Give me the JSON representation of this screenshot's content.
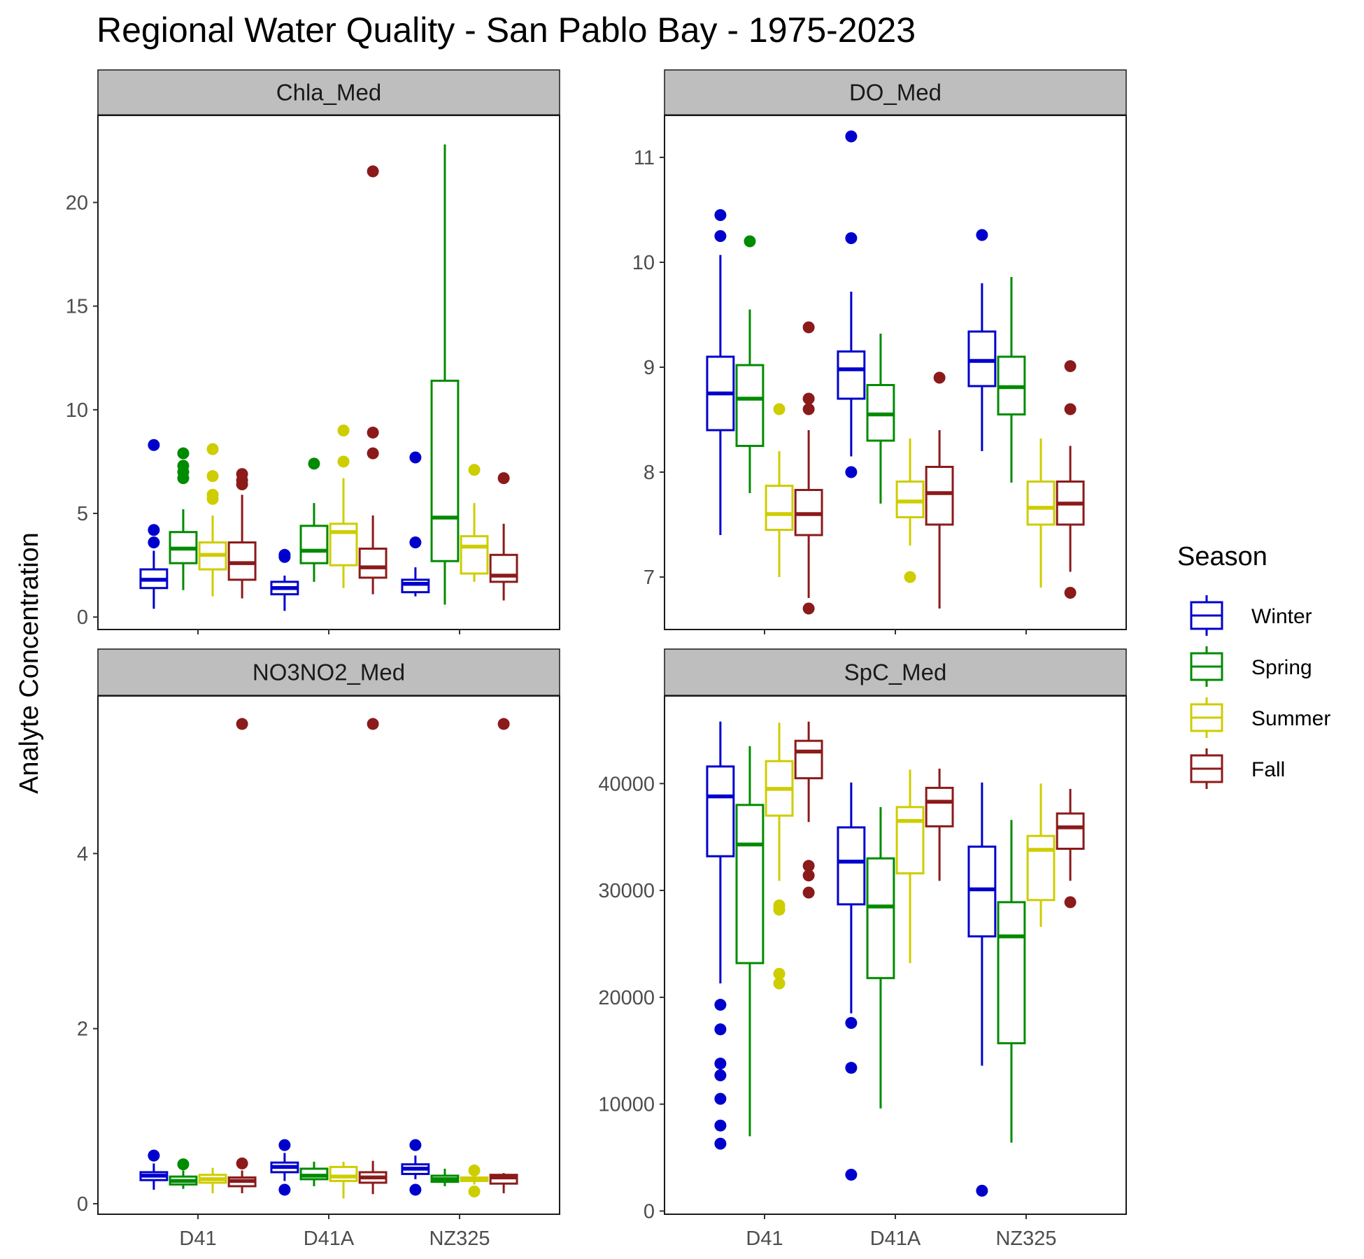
{
  "chart_data": {
    "type": "boxplot",
    "title": "Regional Water Quality - San Pablo Bay - 1975-2023",
    "ylabel": "Analyte Concentration",
    "xlabel": "",
    "stations": [
      "D41",
      "D41A",
      "NZ325"
    ],
    "legend": {
      "title": "Season",
      "position": "right",
      "entries": [
        {
          "name": "Winter",
          "color": "#0000cd"
        },
        {
          "name": "Spring",
          "color": "#008b00"
        },
        {
          "name": "Summer",
          "color": "#cdcd00"
        },
        {
          "name": "Fall",
          "color": "#8b1a1a"
        }
      ]
    },
    "panels": [
      {
        "name": "Chla_Med",
        "ylim": [
          -0.6,
          24.2
        ],
        "yticks": [
          0,
          5,
          10,
          15,
          20
        ],
        "tick_labels": [
          "0",
          "5",
          "10",
          "15",
          "20"
        ],
        "boxes": [
          {
            "station": "D41",
            "season": "Winter",
            "lower": 0.4,
            "q1": 1.4,
            "median": 1.8,
            "q3": 2.3,
            "upper": 3.2,
            "outliers": [
              3.6,
              4.2,
              8.3
            ]
          },
          {
            "station": "D41",
            "season": "Spring",
            "lower": 1.3,
            "q1": 2.6,
            "median": 3.3,
            "q3": 4.1,
            "upper": 5.2,
            "outliers": [
              6.7,
              7.0,
              7.3,
              7.9
            ]
          },
          {
            "station": "D41",
            "season": "Summer",
            "lower": 1.0,
            "q1": 2.3,
            "median": 3.0,
            "q3": 3.6,
            "upper": 4.9,
            "outliers": [
              5.7,
              5.9,
              6.8,
              8.1
            ]
          },
          {
            "station": "D41",
            "season": "Fall",
            "lower": 0.9,
            "q1": 1.8,
            "median": 2.6,
            "q3": 3.6,
            "upper": 5.9,
            "outliers": [
              6.4,
              6.6,
              6.9
            ]
          },
          {
            "station": "D41A",
            "season": "Winter",
            "lower": 0.3,
            "q1": 1.1,
            "median": 1.4,
            "q3": 1.7,
            "upper": 2.0,
            "outliers": [
              2.9,
              3.0
            ]
          },
          {
            "station": "D41A",
            "season": "Spring",
            "lower": 1.7,
            "q1": 2.6,
            "median": 3.2,
            "q3": 4.4,
            "upper": 5.5,
            "outliers": [
              7.4
            ]
          },
          {
            "station": "D41A",
            "season": "Summer",
            "lower": 1.4,
            "q1": 2.5,
            "median": 4.1,
            "q3": 4.5,
            "upper": 6.7,
            "outliers": [
              7.5,
              9.0
            ]
          },
          {
            "station": "D41A",
            "season": "Fall",
            "lower": 1.1,
            "q1": 1.9,
            "median": 2.4,
            "q3": 3.3,
            "upper": 4.9,
            "outliers": [
              7.9,
              8.9,
              21.5
            ]
          },
          {
            "station": "NZ325",
            "season": "Winter",
            "lower": 1.0,
            "q1": 1.2,
            "median": 1.6,
            "q3": 1.8,
            "upper": 2.4,
            "outliers": [
              3.6,
              7.7
            ]
          },
          {
            "station": "NZ325",
            "season": "Spring",
            "lower": 0.6,
            "q1": 2.7,
            "median": 4.8,
            "q3": 11.4,
            "upper": 22.8,
            "outliers": []
          },
          {
            "station": "NZ325",
            "season": "Summer",
            "lower": 1.7,
            "q1": 2.1,
            "median": 3.4,
            "q3": 3.9,
            "upper": 5.5,
            "outliers": [
              7.1
            ]
          },
          {
            "station": "NZ325",
            "season": "Fall",
            "lower": 0.8,
            "q1": 1.7,
            "median": 2.0,
            "q3": 3.0,
            "upper": 4.5,
            "outliers": [
              6.7
            ]
          }
        ]
      },
      {
        "name": "DO_Med",
        "ylim": [
          6.5,
          11.4
        ],
        "yticks": [
          7,
          8,
          9,
          10,
          11
        ],
        "tick_labels": [
          "7",
          "8",
          "9",
          "10",
          "11"
        ],
        "boxes": [
          {
            "station": "D41",
            "season": "Winter",
            "lower": 7.4,
            "q1": 8.4,
            "median": 8.75,
            "q3": 9.1,
            "upper": 10.07,
            "outliers": [
              10.25,
              10.45
            ]
          },
          {
            "station": "D41",
            "season": "Spring",
            "lower": 7.8,
            "q1": 8.25,
            "median": 8.7,
            "q3": 9.02,
            "upper": 9.55,
            "outliers": [
              10.2
            ]
          },
          {
            "station": "D41",
            "season": "Summer",
            "lower": 7.0,
            "q1": 7.45,
            "median": 7.6,
            "q3": 7.87,
            "upper": 8.2,
            "outliers": [
              8.6
            ]
          },
          {
            "station": "D41",
            "season": "Fall",
            "lower": 6.8,
            "q1": 7.4,
            "median": 7.6,
            "q3": 7.83,
            "upper": 8.4,
            "outliers": [
              6.7,
              8.6,
              8.7,
              9.38
            ]
          },
          {
            "station": "D41A",
            "season": "Winter",
            "lower": 8.15,
            "q1": 8.7,
            "median": 8.98,
            "q3": 9.15,
            "upper": 9.72,
            "outliers": [
              8.0,
              10.23,
              11.2
            ]
          },
          {
            "station": "D41A",
            "season": "Spring",
            "lower": 7.7,
            "q1": 8.3,
            "median": 8.55,
            "q3": 8.83,
            "upper": 9.32,
            "outliers": []
          },
          {
            "station": "D41A",
            "season": "Summer",
            "lower": 7.3,
            "q1": 7.57,
            "median": 7.72,
            "q3": 7.91,
            "upper": 8.32,
            "outliers": [
              7.0
            ]
          },
          {
            "station": "D41A",
            "season": "Fall",
            "lower": 6.7,
            "q1": 7.5,
            "median": 7.8,
            "q3": 8.05,
            "upper": 8.4,
            "outliers": [
              8.9
            ]
          },
          {
            "station": "NZ325",
            "season": "Winter",
            "lower": 8.2,
            "q1": 8.82,
            "median": 9.06,
            "q3": 9.34,
            "upper": 9.8,
            "outliers": [
              10.26
            ]
          },
          {
            "station": "NZ325",
            "season": "Spring",
            "lower": 7.9,
            "q1": 8.55,
            "median": 8.81,
            "q3": 9.1,
            "upper": 9.86,
            "outliers": []
          },
          {
            "station": "NZ325",
            "season": "Summer",
            "lower": 6.9,
            "q1": 7.5,
            "median": 7.66,
            "q3": 7.91,
            "upper": 8.32,
            "outliers": []
          },
          {
            "station": "NZ325",
            "season": "Fall",
            "lower": 7.05,
            "q1": 7.5,
            "median": 7.7,
            "q3": 7.91,
            "upper": 8.25,
            "outliers": [
              6.85,
              8.6,
              9.01
            ]
          }
        ]
      },
      {
        "name": "NO3NO2_Med",
        "ylim": [
          -0.12,
          5.8
        ],
        "yticks": [
          0,
          2,
          4
        ],
        "tick_labels": [
          "0",
          "2",
          "4"
        ],
        "boxes": [
          {
            "station": "D41",
            "season": "Winter",
            "lower": 0.16,
            "q1": 0.27,
            "median": 0.32,
            "q3": 0.36,
            "upper": 0.46,
            "outliers": [
              0.55
            ]
          },
          {
            "station": "D41",
            "season": "Spring",
            "lower": 0.17,
            "q1": 0.22,
            "median": 0.26,
            "q3": 0.31,
            "upper": 0.38,
            "outliers": [
              0.45
            ]
          },
          {
            "station": "D41",
            "season": "Summer",
            "lower": 0.12,
            "q1": 0.24,
            "median": 0.28,
            "q3": 0.33,
            "upper": 0.41,
            "outliers": []
          },
          {
            "station": "D41",
            "season": "Fall",
            "lower": 0.12,
            "q1": 0.2,
            "median": 0.26,
            "q3": 0.3,
            "upper": 0.38,
            "outliers": [
              0.46,
              5.48
            ]
          },
          {
            "station": "D41A",
            "season": "Winter",
            "lower": 0.26,
            "q1": 0.36,
            "median": 0.42,
            "q3": 0.47,
            "upper": 0.58,
            "outliers": [
              0.16,
              0.67
            ]
          },
          {
            "station": "D41A",
            "season": "Spring",
            "lower": 0.2,
            "q1": 0.28,
            "median": 0.32,
            "q3": 0.4,
            "upper": 0.48,
            "outliers": []
          },
          {
            "station": "D41A",
            "season": "Summer",
            "lower": 0.06,
            "q1": 0.26,
            "median": 0.31,
            "q3": 0.42,
            "upper": 0.48,
            "outliers": []
          },
          {
            "station": "D41A",
            "season": "Fall",
            "lower": 0.11,
            "q1": 0.24,
            "median": 0.3,
            "q3": 0.36,
            "upper": 0.49,
            "outliers": [
              5.48
            ]
          },
          {
            "station": "NZ325",
            "season": "Winter",
            "lower": 0.28,
            "q1": 0.34,
            "median": 0.4,
            "q3": 0.45,
            "upper": 0.55,
            "outliers": [
              0.16,
              0.67
            ]
          },
          {
            "station": "NZ325",
            "season": "Spring",
            "lower": 0.2,
            "q1": 0.25,
            "median": 0.28,
            "q3": 0.32,
            "upper": 0.4,
            "outliers": []
          },
          {
            "station": "NZ325",
            "season": "Summer",
            "lower": 0.22,
            "q1": 0.26,
            "median": 0.28,
            "q3": 0.3,
            "upper": 0.33,
            "outliers": [
              0.14,
              0.38
            ]
          },
          {
            "station": "NZ325",
            "season": "Fall",
            "lower": 0.12,
            "q1": 0.23,
            "median": 0.3,
            "q3": 0.33,
            "upper": 0.35,
            "outliers": [
              5.48
            ]
          }
        ]
      },
      {
        "name": "SpC_Med",
        "ylim": [
          -300,
          48200
        ],
        "yticks": [
          0,
          10000,
          20000,
          30000,
          40000
        ],
        "tick_labels": [
          "0",
          "10000",
          "20000",
          "30000",
          "40000"
        ],
        "boxes": [
          {
            "station": "D41",
            "season": "Winter",
            "lower": 21300,
            "q1": 33200,
            "median": 38800,
            "q3": 41600,
            "upper": 45800,
            "outliers": [
              6300,
              8000,
              10500,
              12700,
              13800,
              17000,
              19300
            ]
          },
          {
            "station": "D41",
            "season": "Spring",
            "lower": 7000,
            "q1": 23200,
            "median": 34300,
            "q3": 38000,
            "upper": 43500,
            "outliers": []
          },
          {
            "station": "D41",
            "season": "Summer",
            "lower": 30900,
            "q1": 37000,
            "median": 39500,
            "q3": 42100,
            "upper": 45700,
            "outliers": [
              21300,
              22200,
              28200,
              28600
            ]
          },
          {
            "station": "D41",
            "season": "Fall",
            "lower": 36400,
            "q1": 40500,
            "median": 43000,
            "q3": 44000,
            "upper": 45800,
            "outliers": [
              29800,
              31400,
              32300
            ]
          },
          {
            "station": "D41A",
            "season": "Winter",
            "lower": 18500,
            "q1": 28700,
            "median": 32700,
            "q3": 35900,
            "upper": 40100,
            "outliers": [
              3400,
              13400,
              17600
            ]
          },
          {
            "station": "D41A",
            "season": "Spring",
            "lower": 9600,
            "q1": 21800,
            "median": 28500,
            "q3": 33000,
            "upper": 37800,
            "outliers": []
          },
          {
            "station": "D41A",
            "season": "Summer",
            "lower": 23200,
            "q1": 31600,
            "median": 36500,
            "q3": 37800,
            "upper": 41300,
            "outliers": []
          },
          {
            "station": "D41A",
            "season": "Fall",
            "lower": 30900,
            "q1": 36000,
            "median": 38300,
            "q3": 39600,
            "upper": 41400,
            "outliers": []
          },
          {
            "station": "NZ325",
            "season": "Winter",
            "lower": 13600,
            "q1": 25700,
            "median": 30100,
            "q3": 34100,
            "upper": 40100,
            "outliers": [
              1900
            ]
          },
          {
            "station": "NZ325",
            "season": "Spring",
            "lower": 6400,
            "q1": 15700,
            "median": 25700,
            "q3": 28900,
            "upper": 36600,
            "outliers": []
          },
          {
            "station": "NZ325",
            "season": "Summer",
            "lower": 26600,
            "q1": 29100,
            "median": 33800,
            "q3": 35100,
            "upper": 40000,
            "outliers": []
          },
          {
            "station": "NZ325",
            "season": "Fall",
            "lower": 30900,
            "q1": 33900,
            "median": 35900,
            "q3": 37200,
            "upper": 39500,
            "outliers": [
              28900
            ]
          }
        ]
      }
    ]
  }
}
